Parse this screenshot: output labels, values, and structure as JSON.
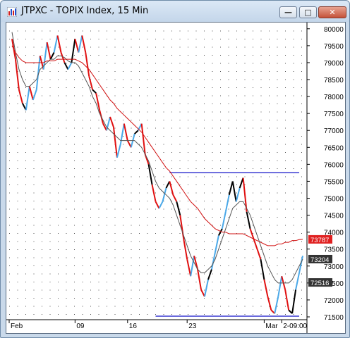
{
  "window": {
    "title": "JTPXC - TOPIX Index, 15 Min",
    "buttons": {
      "minimize": "—",
      "maximize": "□",
      "close": "✕"
    },
    "app_icon": "chart-icon"
  },
  "chart_data": {
    "type": "line",
    "symbol": "JTPXC",
    "timeframe": "15 Min",
    "ylim": [
      71500,
      80100
    ],
    "grid": true,
    "y_ticks": [
      "80000",
      "79500",
      "79000",
      "78500",
      "78000",
      "77500",
      "77000",
      "76500",
      "76000",
      "75500",
      "75000",
      "74500",
      "74000",
      "73500",
      "73000",
      "72500",
      "72000",
      "71500"
    ],
    "x_ticks": [
      "Feb",
      "09",
      "16",
      "23",
      "Mar",
      "2-09:00"
    ],
    "price_tags": [
      {
        "label": "73787",
        "value": 73787,
        "color": "#e02020"
      },
      {
        "label": "73204",
        "value": 73204,
        "color": "#333333"
      },
      {
        "label": "72516",
        "value": 72516,
        "color": "#333333"
      }
    ],
    "horizontal_lines": [
      {
        "value": 75750,
        "from_index": 45,
        "to_index": 82,
        "color": "#1010c8"
      },
      {
        "value": 71520,
        "from_index": 41,
        "to_index": 82,
        "color": "#1010c8"
      }
    ],
    "series": [
      {
        "color_rule": "price",
        "values": [
          79700,
          79100,
          78200,
          77800,
          77600,
          78300,
          77900,
          78200,
          79200,
          78800,
          79600,
          79100,
          79300,
          79800,
          79300,
          79000,
          78800,
          79000,
          79700,
          79300,
          79800,
          79300,
          78600,
          78200,
          78100,
          77600,
          77200,
          77000,
          77400,
          77100,
          76200,
          76600,
          77200,
          76700,
          76500,
          76900,
          77000,
          77200,
          76300,
          76000,
          75400,
          74900,
          74700,
          74900,
          75300,
          75500,
          75100,
          74900,
          74500,
          73800,
          73200,
          72700,
          73300,
          72900,
          72300,
          72100,
          72600,
          72900,
          73400,
          73900,
          74100,
          74600,
          75100,
          75500,
          74900,
          75300,
          75600,
          74600,
          74100,
          73800,
          73500,
          73200,
          72600,
          72100,
          71700,
          71600,
          72100,
          72700,
          72300,
          71700,
          71600,
          72300,
          72800,
          73300
        ]
      },
      {
        "name": "",
        "role": "fast-ma",
        "color": "#555555",
        "values": [
          79900,
          79300,
          78800,
          78500,
          78300,
          78300,
          78400,
          78500,
          78800,
          78900,
          79000,
          79100,
          79100,
          79200,
          79200,
          79150,
          79050,
          79000,
          79000,
          78900,
          78700,
          78500,
          78300,
          78000,
          77800,
          77500,
          77300,
          77100,
          77000,
          76900,
          76800,
          76700,
          76700,
          76700,
          76700,
          76700,
          76600,
          76500,
          76300,
          76100,
          75800,
          75500,
          75300,
          75200,
          75100,
          75000,
          74800,
          74500,
          74200,
          73900,
          73600,
          73300,
          73100,
          72900,
          72800,
          72800,
          72900,
          73000,
          73200,
          73500,
          73800,
          74100,
          74400,
          74700,
          74800,
          74900,
          74900,
          74700,
          74500,
          74200,
          73900,
          73600,
          73300,
          73000,
          72800,
          72600,
          72500,
          72500,
          72500,
          72500,
          72600,
          72800,
          73000,
          73200
        ]
      },
      {
        "name": "",
        "role": "slow-ma",
        "color": "#d01010",
        "values": [
          79500,
          79300,
          79150,
          79050,
          79000,
          79000,
          79000,
          79000,
          79000,
          79000,
          79050,
          79050,
          79050,
          79100,
          79100,
          79100,
          79100,
          79100,
          79100,
          79050,
          79000,
          78900,
          78800,
          78650,
          78500,
          78350,
          78200,
          78050,
          77900,
          77800,
          77650,
          77550,
          77450,
          77350,
          77250,
          77150,
          77050,
          76950,
          76800,
          76650,
          76500,
          76350,
          76200,
          76050,
          75900,
          75800,
          75650,
          75500,
          75350,
          75200,
          75050,
          74900,
          74800,
          74700,
          74550,
          74400,
          74300,
          74200,
          74100,
          74050,
          74000,
          74000,
          73950,
          73950,
          73950,
          73950,
          73950,
          73900,
          73850,
          73800,
          73750,
          73700,
          73650,
          73600,
          73600,
          73600,
          73650,
          73650,
          73700,
          73700,
          73750,
          73750,
          73780,
          73787
        ]
      }
    ]
  }
}
